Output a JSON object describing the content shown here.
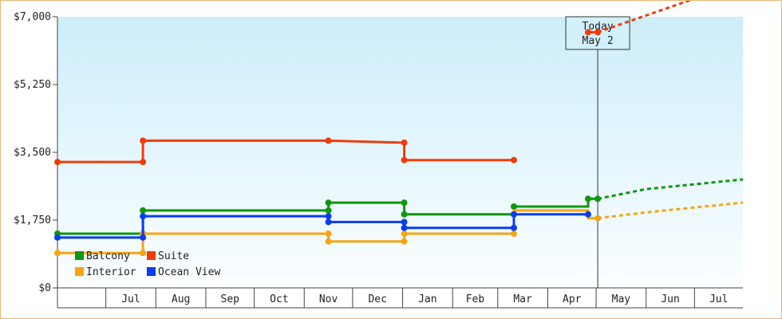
{
  "chart_data": {
    "type": "line",
    "line_style": "step",
    "y_axis": {
      "min": 0,
      "max": 7000,
      "ticks": [
        0,
        1750,
        3500,
        5250,
        7000
      ],
      "tick_labels": [
        "$0",
        "$1,750",
        "$3,500",
        "$5,250",
        "$7,000"
      ]
    },
    "x_axis": {
      "range": [
        "2024-06-01",
        "2025-07-31"
      ],
      "months": [
        {
          "label": "Jul",
          "start": "2024-07-01"
        },
        {
          "label": "Aug",
          "start": "2024-08-01"
        },
        {
          "label": "Sep",
          "start": "2024-09-01"
        },
        {
          "label": "Oct",
          "start": "2024-10-01"
        },
        {
          "label": "Nov",
          "start": "2024-11-01"
        },
        {
          "label": "Dec",
          "start": "2024-12-01"
        },
        {
          "label": "Jan",
          "start": "2025-01-01"
        },
        {
          "label": "Feb",
          "start": "2025-02-01"
        },
        {
          "label": "Mar",
          "start": "2025-03-01"
        },
        {
          "label": "Apr",
          "start": "2025-04-01"
        },
        {
          "label": "May",
          "start": "2025-05-01"
        },
        {
          "label": "Jun",
          "start": "2025-06-01"
        },
        {
          "label": "Jul",
          "start": "2025-07-01"
        }
      ]
    },
    "today": {
      "date": "2025-05-02",
      "label_line1": "Today",
      "label_line2": "May 2"
    },
    "background_gradient": [
      "#cdeefa",
      "#fbfeff"
    ],
    "legend": {
      "position": "bottom-left"
    },
    "series": [
      {
        "name": "Balcony",
        "color": "#0f960f",
        "points": [
          [
            "2024-06-01",
            1400
          ],
          [
            "2024-07-24",
            1400
          ],
          [
            "2024-07-24",
            2000
          ],
          [
            "2024-11-16",
            2000
          ],
          [
            "2024-11-16",
            2200
          ],
          [
            "2025-01-02",
            2200
          ],
          [
            "2025-01-02",
            1900
          ],
          [
            "2025-03-11",
            1900
          ],
          [
            "2025-03-11",
            2100
          ],
          [
            "2025-04-26",
            2100
          ],
          [
            "2025-04-26",
            2300
          ],
          [
            "2025-05-02",
            2300
          ]
        ],
        "markers": [
          [
            "2024-06-01",
            1400
          ],
          [
            "2024-07-24",
            1400
          ],
          [
            "2024-07-24",
            2000
          ],
          [
            "2024-11-16",
            2000
          ],
          [
            "2024-11-16",
            2200
          ],
          [
            "2025-01-02",
            2200
          ],
          [
            "2025-01-02",
            1900
          ],
          [
            "2025-03-11",
            1900
          ],
          [
            "2025-03-11",
            2100
          ],
          [
            "2025-04-26",
            2300
          ],
          [
            "2025-05-02",
            2300
          ]
        ],
        "forecast": [
          [
            "2025-05-02",
            2300
          ],
          [
            "2025-06-01",
            2550
          ],
          [
            "2025-07-31",
            2800
          ]
        ]
      },
      {
        "name": "Suite",
        "color": "#f03c0a",
        "points": [
          [
            "2024-06-01",
            3250
          ],
          [
            "2024-07-24",
            3250
          ],
          [
            "2024-07-24",
            3800
          ],
          [
            "2024-11-16",
            3800
          ],
          [
            "2025-01-02",
            3750
          ],
          [
            "2025-01-02",
            3300
          ],
          [
            "2025-03-11",
            3300
          ]
        ],
        "markers": [
          [
            "2024-06-01",
            3250
          ],
          [
            "2024-07-24",
            3250
          ],
          [
            "2024-07-24",
            3800
          ],
          [
            "2024-11-16",
            3800
          ],
          [
            "2025-01-02",
            3750
          ],
          [
            "2025-01-02",
            3300
          ],
          [
            "2025-03-11",
            3300
          ]
        ],
        "segment2": [
          [
            "2025-04-26",
            6600
          ],
          [
            "2025-05-02",
            6600
          ]
        ],
        "forecast": [
          [
            "2025-05-02",
            6600
          ],
          [
            "2025-07-31",
            7900
          ]
        ]
      },
      {
        "name": "Interior",
        "color": "#f5a514",
        "points": [
          [
            "2024-06-01",
            900
          ],
          [
            "2024-07-24",
            900
          ],
          [
            "2024-07-24",
            1400
          ],
          [
            "2024-11-16",
            1400
          ],
          [
            "2024-11-16",
            1200
          ],
          [
            "2025-01-02",
            1200
          ],
          [
            "2025-01-02",
            1400
          ],
          [
            "2025-03-11",
            1400
          ],
          [
            "2025-03-11",
            2000
          ],
          [
            "2025-04-26",
            2000
          ],
          [
            "2025-04-26",
            1800
          ],
          [
            "2025-05-02",
            1800
          ]
        ],
        "markers": [
          [
            "2024-06-01",
            900
          ],
          [
            "2024-07-24",
            900
          ],
          [
            "2024-07-24",
            1400
          ],
          [
            "2024-11-16",
            1400
          ],
          [
            "2024-11-16",
            1200
          ],
          [
            "2025-01-02",
            1200
          ],
          [
            "2025-01-02",
            1400
          ],
          [
            "2025-03-11",
            1400
          ],
          [
            "2025-05-02",
            1800
          ]
        ],
        "forecast": [
          [
            "2025-05-02",
            1800
          ],
          [
            "2025-06-01",
            1950
          ],
          [
            "2025-07-31",
            2200
          ]
        ]
      },
      {
        "name": "Ocean View",
        "color": "#0a3cf0",
        "points": [
          [
            "2024-06-01",
            1300
          ],
          [
            "2024-07-24",
            1300
          ],
          [
            "2024-07-24",
            1850
          ],
          [
            "2024-11-16",
            1850
          ],
          [
            "2024-11-16",
            1700
          ],
          [
            "2025-01-02",
            1700
          ],
          [
            "2025-01-02",
            1550
          ],
          [
            "2025-03-11",
            1550
          ],
          [
            "2025-03-11",
            1900
          ],
          [
            "2025-04-26",
            1900
          ]
        ],
        "markers": [
          [
            "2024-06-01",
            1300
          ],
          [
            "2024-07-24",
            1300
          ],
          [
            "2024-07-24",
            1850
          ],
          [
            "2024-11-16",
            1850
          ],
          [
            "2024-11-16",
            1700
          ],
          [
            "2025-01-02",
            1700
          ],
          [
            "2025-01-02",
            1550
          ],
          [
            "2025-03-11",
            1550
          ],
          [
            "2025-03-11",
            1900
          ],
          [
            "2025-04-26",
            1900
          ]
        ],
        "forecast": []
      }
    ]
  }
}
